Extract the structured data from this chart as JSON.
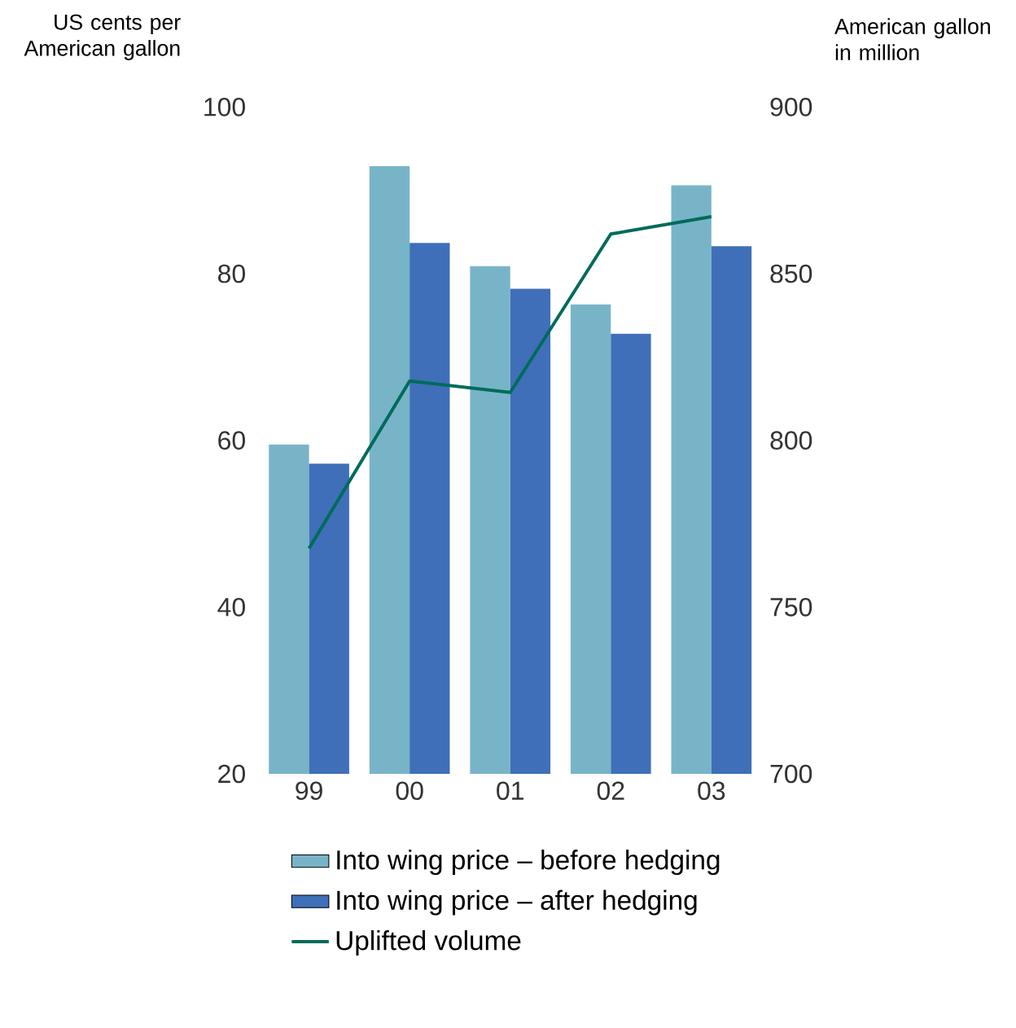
{
  "chart_data": {
    "type": "bar",
    "ylabel": "US cents per American gallon",
    "y2label": "American gallon in million",
    "categories": [
      "99",
      "00",
      "01",
      "02",
      "03"
    ],
    "series": [
      {
        "name": "Into wing price – before hedging",
        "color": "#78b4c8",
        "values": [
          59.5,
          92.9,
          80.9,
          76.3,
          90.6
        ]
      },
      {
        "name": "Into wing price – after hedging",
        "color": "#3f6fb8",
        "values": [
          57.2,
          83.7,
          78.2,
          72.8,
          83.3
        ]
      },
      {
        "name": "Uplifted volume",
        "type": "line",
        "axis": "y2",
        "color": "#006b5a",
        "values": [
          767.6,
          817.8,
          814.4,
          861.9,
          867.1
        ]
      }
    ],
    "ylim": [
      20,
      100
    ],
    "yticks": [
      20,
      40,
      60,
      80,
      100
    ],
    "y2lim": [
      700,
      900
    ],
    "y2ticks": [
      700,
      750,
      800,
      850,
      900
    ],
    "grid": false,
    "legend": "bottom",
    "marker": "none",
    "line_style": "solid"
  }
}
